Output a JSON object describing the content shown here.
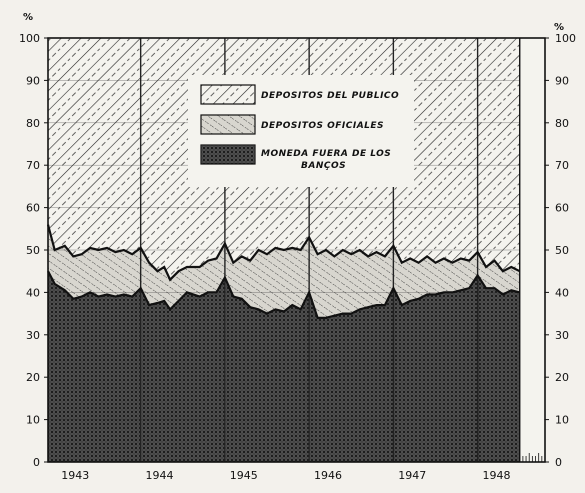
{
  "chart_data": {
    "type": "area",
    "stacked_to_100": true,
    "y_unit_left": "%",
    "y_unit_right": "%",
    "ylim": [
      0,
      100
    ],
    "yticks": [
      0,
      10,
      20,
      30,
      40,
      50,
      60,
      70,
      80,
      90,
      100
    ],
    "xlim": [
      1942.7,
      1948.6
    ],
    "xticks": [
      {
        "x": 1943,
        "label": "1943"
      },
      {
        "x": 1944,
        "label": "1944"
      },
      {
        "x": 1945,
        "label": "1945"
      },
      {
        "x": 1946,
        "label": "1946"
      },
      {
        "x": 1947,
        "label": "1947"
      },
      {
        "x": 1948,
        "label": "1948"
      }
    ],
    "grid": true,
    "legend_position": "top-center",
    "series": [
      {
        "name": "DEPOSITOS DEL PUBLICO",
        "pattern": "diagonal-hatch",
        "description_role": "top band, from upper line to 100"
      },
      {
        "name": "DEPOSITOS OFICIALES",
        "pattern": "fine-dash-hatch",
        "description_role": "middle band"
      },
      {
        "name": "MONEDA FUERA DE LOS BANÇOS",
        "pattern": "cross-hatch",
        "description_role": "bottom band, from 0 to lower line"
      }
    ],
    "upper_line": [
      [
        1942.7,
        56
      ],
      [
        1942.78,
        50
      ],
      [
        1942.9,
        51
      ],
      [
        1943.0,
        48.5
      ],
      [
        1943.1,
        49
      ],
      [
        1943.2,
        50.5
      ],
      [
        1943.3,
        50
      ],
      [
        1943.4,
        50.5
      ],
      [
        1943.5,
        49.5
      ],
      [
        1943.6,
        50
      ],
      [
        1943.7,
        49
      ],
      [
        1943.8,
        50.5
      ],
      [
        1943.9,
        47
      ],
      [
        1944.0,
        45
      ],
      [
        1944.08,
        46
      ],
      [
        1944.15,
        43
      ],
      [
        1944.25,
        45
      ],
      [
        1944.35,
        46
      ],
      [
        1944.5,
        46
      ],
      [
        1944.6,
        47.5
      ],
      [
        1944.7,
        48
      ],
      [
        1944.8,
        51.5
      ],
      [
        1944.9,
        47
      ],
      [
        1945.0,
        48.5
      ],
      [
        1945.1,
        47.5
      ],
      [
        1945.2,
        50
      ],
      [
        1945.3,
        49
      ],
      [
        1945.4,
        50.5
      ],
      [
        1945.5,
        50
      ],
      [
        1945.6,
        50.5
      ],
      [
        1945.7,
        50
      ],
      [
        1945.8,
        53
      ],
      [
        1945.9,
        49
      ],
      [
        1946.0,
        50
      ],
      [
        1946.1,
        48.5
      ],
      [
        1946.2,
        50
      ],
      [
        1946.3,
        49
      ],
      [
        1946.4,
        50
      ],
      [
        1946.5,
        48.5
      ],
      [
        1946.6,
        49.5
      ],
      [
        1946.7,
        48.5
      ],
      [
        1946.8,
        51
      ],
      [
        1946.9,
        47
      ],
      [
        1947.0,
        48
      ],
      [
        1947.1,
        47
      ],
      [
        1947.2,
        48.5
      ],
      [
        1947.3,
        47
      ],
      [
        1947.4,
        48
      ],
      [
        1947.5,
        47
      ],
      [
        1947.6,
        48
      ],
      [
        1947.7,
        47.5
      ],
      [
        1947.8,
        49.5
      ],
      [
        1947.9,
        46
      ],
      [
        1948.0,
        47.5
      ],
      [
        1948.1,
        45
      ],
      [
        1948.2,
        46
      ],
      [
        1948.3,
        45
      ]
    ],
    "lower_line": [
      [
        1942.7,
        45
      ],
      [
        1942.78,
        42
      ],
      [
        1942.9,
        40.5
      ],
      [
        1943.0,
        38.5
      ],
      [
        1943.1,
        39
      ],
      [
        1943.2,
        40
      ],
      [
        1943.3,
        39
      ],
      [
        1943.4,
        39.5
      ],
      [
        1943.5,
        39
      ],
      [
        1943.6,
        39.5
      ],
      [
        1943.7,
        39
      ],
      [
        1943.8,
        41
      ],
      [
        1943.9,
        37
      ],
      [
        1944.0,
        37.5
      ],
      [
        1944.08,
        38
      ],
      [
        1944.15,
        36
      ],
      [
        1944.25,
        38
      ],
      [
        1944.35,
        40
      ],
      [
        1944.5,
        39
      ],
      [
        1944.6,
        40
      ],
      [
        1944.7,
        40
      ],
      [
        1944.8,
        43.5
      ],
      [
        1944.9,
        39
      ],
      [
        1945.0,
        38.5
      ],
      [
        1945.1,
        36.5
      ],
      [
        1945.2,
        36
      ],
      [
        1945.3,
        35
      ],
      [
        1945.4,
        36
      ],
      [
        1945.5,
        35.5
      ],
      [
        1945.6,
        37
      ],
      [
        1945.7,
        36
      ],
      [
        1945.8,
        40
      ],
      [
        1945.9,
        34
      ],
      [
        1946.0,
        34
      ],
      [
        1946.1,
        34.5
      ],
      [
        1946.2,
        35
      ],
      [
        1946.3,
        35
      ],
      [
        1946.4,
        36
      ],
      [
        1946.5,
        36.5
      ],
      [
        1946.6,
        37
      ],
      [
        1946.7,
        37
      ],
      [
        1946.8,
        41
      ],
      [
        1946.9,
        37
      ],
      [
        1947.0,
        38
      ],
      [
        1947.1,
        38.5
      ],
      [
        1947.2,
        39.5
      ],
      [
        1947.3,
        39.5
      ],
      [
        1947.4,
        40
      ],
      [
        1947.5,
        40
      ],
      [
        1947.6,
        40.5
      ],
      [
        1947.7,
        41
      ],
      [
        1947.8,
        44
      ],
      [
        1947.9,
        41
      ],
      [
        1948.0,
        41
      ],
      [
        1948.1,
        39.5
      ],
      [
        1948.2,
        40.5
      ],
      [
        1948.3,
        40
      ]
    ]
  }
}
